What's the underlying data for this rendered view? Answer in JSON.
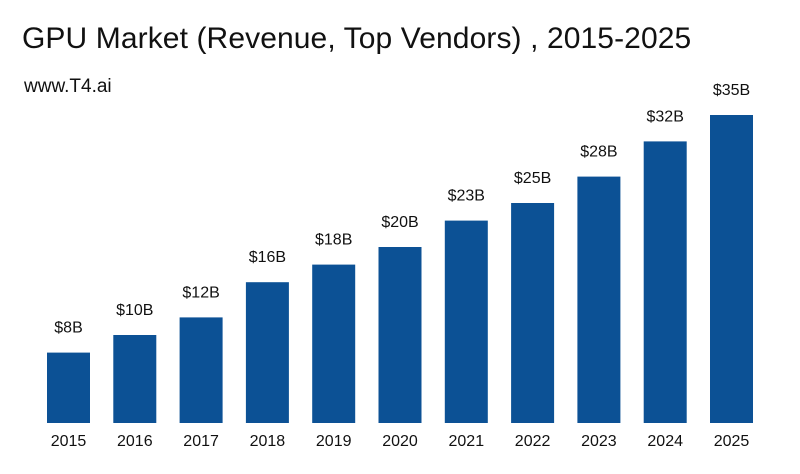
{
  "chart_data": {
    "type": "bar",
    "title": "GPU Market (Revenue, Top Vendors) , 2015-2025",
    "subtitle": "www.T4.ai",
    "categories": [
      "2015",
      "2016",
      "2017",
      "2018",
      "2019",
      "2020",
      "2021",
      "2022",
      "2023",
      "2024",
      "2025"
    ],
    "values": [
      8,
      10,
      12,
      16,
      18,
      20,
      23,
      25,
      28,
      32,
      35
    ],
    "data_labels": [
      "$8B",
      "$10B",
      "$12B",
      "$16B",
      "$18B",
      "$20B",
      "$23B",
      "$25B",
      "$28B",
      "$32B",
      "$35B"
    ],
    "unit": "$B",
    "xlabel": "",
    "ylabel": "",
    "ylim": [
      0,
      35
    ],
    "grid": false,
    "legend": "none",
    "bar_color": "#0c5195"
  }
}
